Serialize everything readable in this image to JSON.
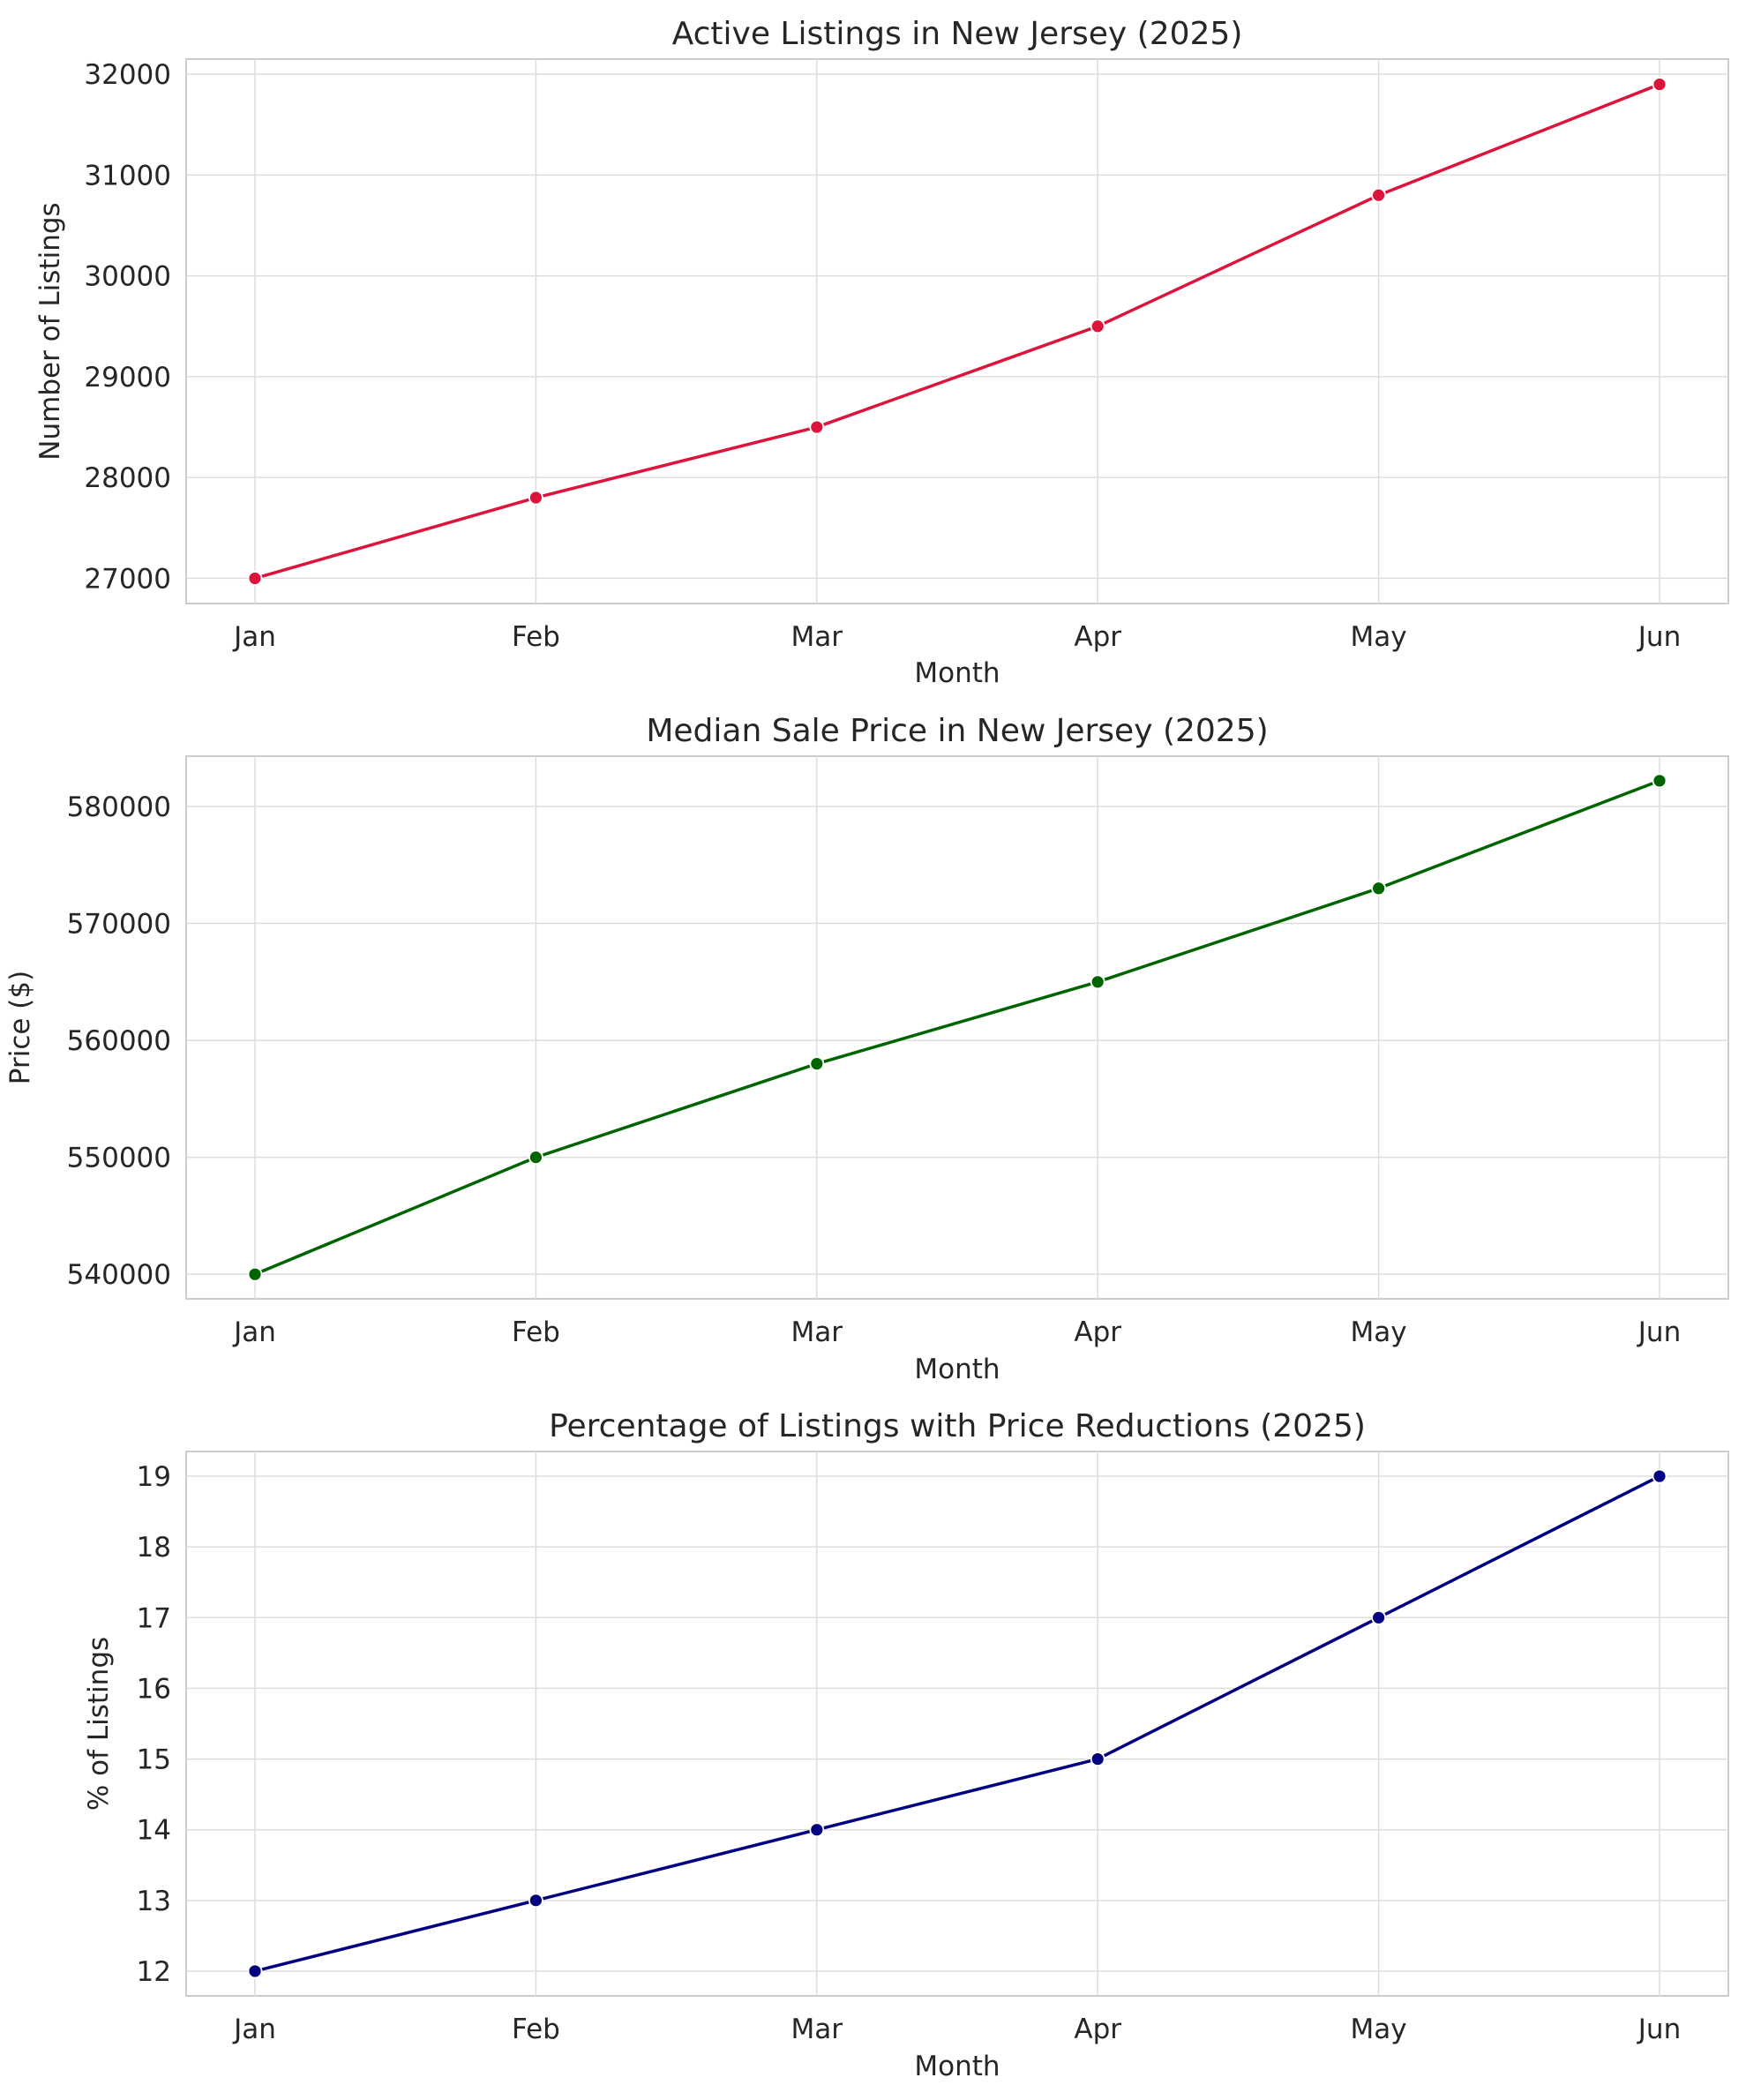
{
  "chart_data": [
    {
      "type": "line",
      "title": "Active Listings in New Jersey (2025)",
      "xlabel": "Month",
      "ylabel": "Number of Listings",
      "categories": [
        "Jan",
        "Feb",
        "Mar",
        "Apr",
        "May",
        "Jun"
      ],
      "values": [
        27000,
        27800,
        28500,
        29500,
        30800,
        31900
      ],
      "yticks": [
        27000,
        28000,
        29000,
        30000,
        31000,
        32000
      ],
      "ylim": [
        26750,
        32150
      ],
      "color": "#dc143c",
      "grid": true
    },
    {
      "type": "line",
      "title": "Median Sale Price in New Jersey (2025)",
      "xlabel": "Month",
      "ylabel": "Price ($)",
      "categories": [
        "Jan",
        "Feb",
        "Mar",
        "Apr",
        "May",
        "Jun"
      ],
      "values": [
        540000,
        550000,
        558000,
        565000,
        573000,
        582200
      ],
      "yticks": [
        540000,
        550000,
        560000,
        570000,
        580000
      ],
      "ylim": [
        537900,
        584300
      ],
      "color": "#006400",
      "grid": true
    },
    {
      "type": "line",
      "title": "Percentage of Listings with Price Reductions (2025)",
      "xlabel": "Month",
      "ylabel": "% of Listings",
      "categories": [
        "Jan",
        "Feb",
        "Mar",
        "Apr",
        "May",
        "Jun"
      ],
      "values": [
        12,
        13,
        14,
        15,
        17,
        19
      ],
      "yticks": [
        12,
        13,
        14,
        15,
        16,
        17,
        18,
        19
      ],
      "ylim": [
        11.65,
        19.35
      ],
      "color": "#000080",
      "grid": true
    }
  ]
}
